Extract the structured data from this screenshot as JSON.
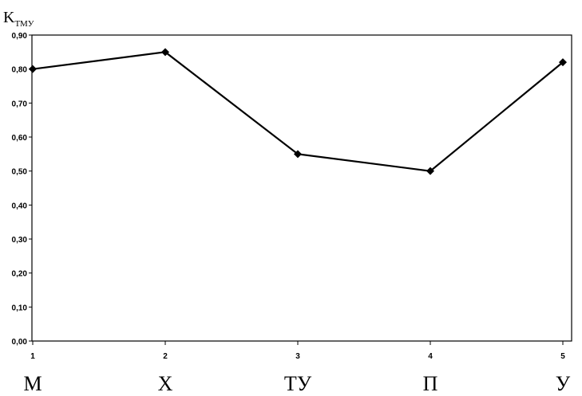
{
  "chart_data": {
    "type": "line",
    "ylabel": {
      "main": "K",
      "sub": "ТМУ"
    },
    "x": [
      1,
      2,
      3,
      4,
      5
    ],
    "categories": [
      "М",
      "Х",
      "ТУ",
      "П",
      "У"
    ],
    "values": [
      0.8,
      0.85,
      0.55,
      0.5,
      0.82
    ],
    "ylim": [
      0,
      0.9
    ],
    "xlim": [
      1,
      5
    ],
    "yticks": [
      "0,00",
      "0,10",
      "0,20",
      "0,30",
      "0,40",
      "0,50",
      "0,60",
      "0,70",
      "0,80",
      "0,90"
    ],
    "xticks": [
      "1",
      "2",
      "3",
      "4",
      "5"
    ],
    "grid": false,
    "legend": "none"
  }
}
